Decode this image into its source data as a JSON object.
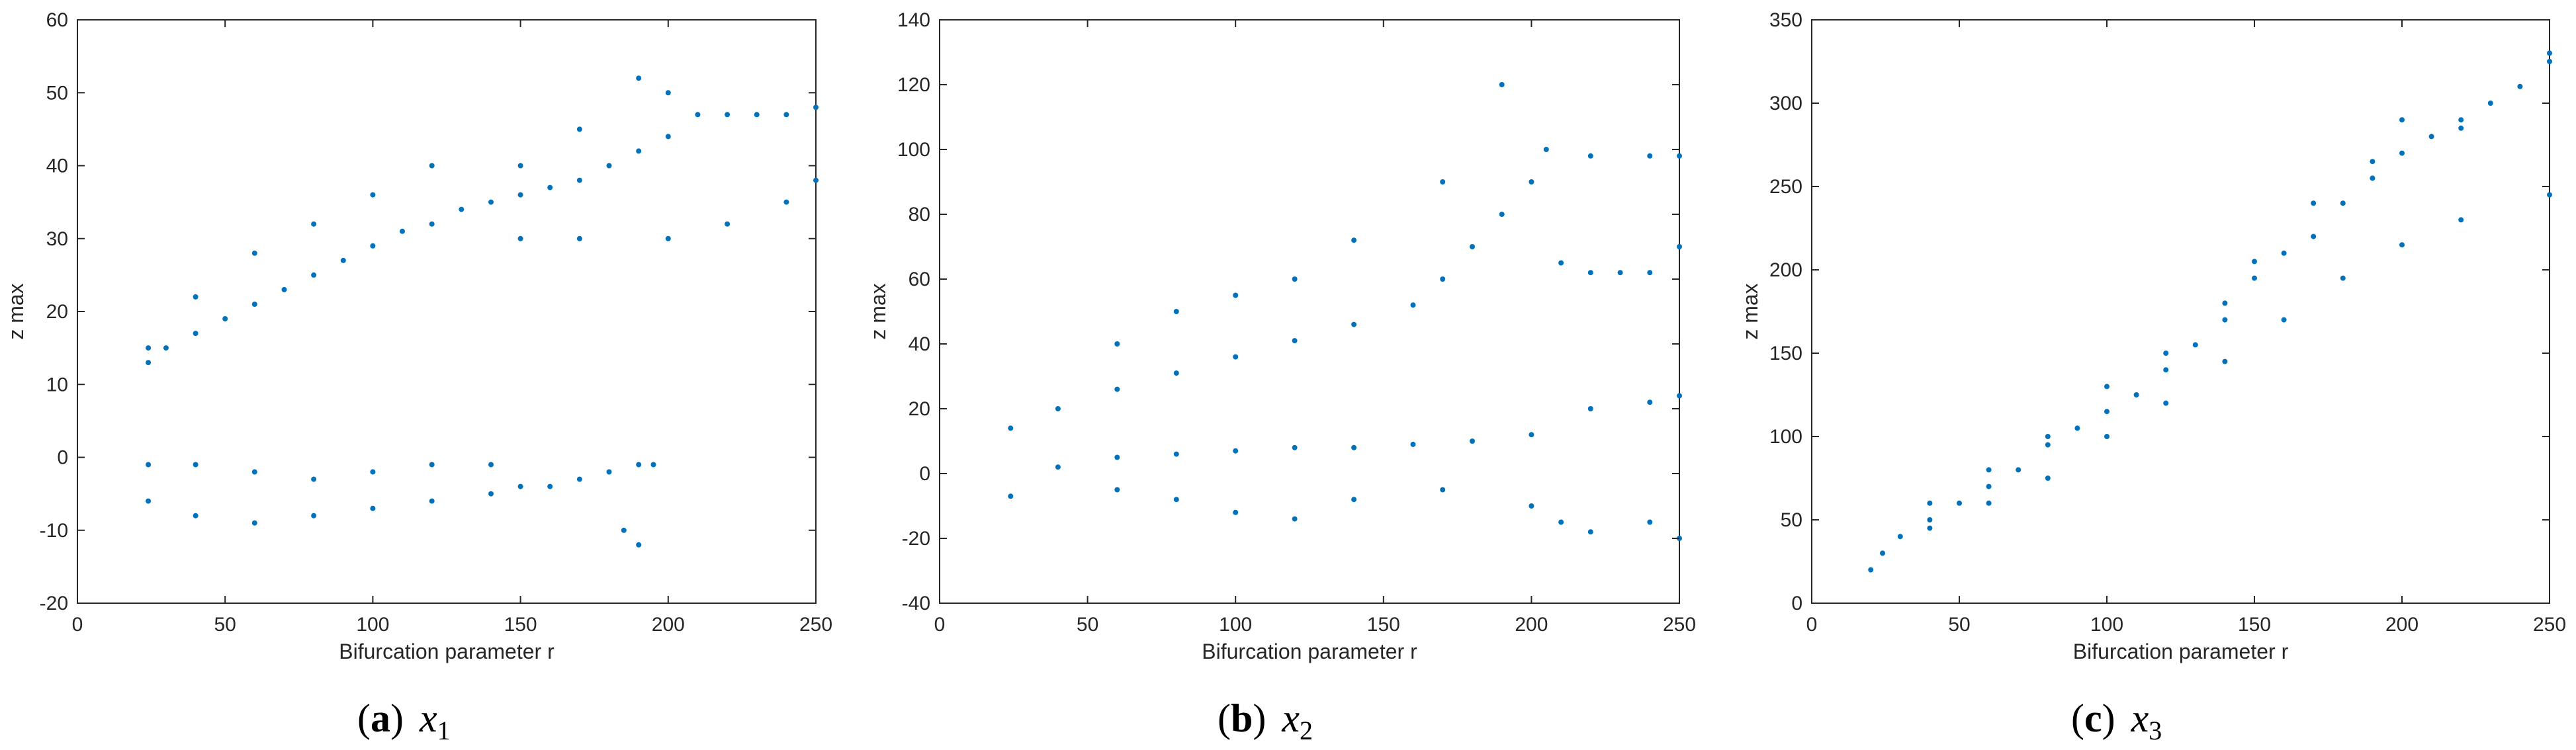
{
  "figure": {
    "marker_color": "#0072BD",
    "axis_color": "#262626"
  },
  "chart_data": [
    {
      "type": "scatter",
      "title": "",
      "xlabel": "Bifurcation parameter r",
      "ylabel": "z max",
      "xlim": [
        0,
        250
      ],
      "ylim": [
        -20,
        60
      ],
      "xticks": [
        0,
        50,
        100,
        150,
        200,
        250
      ],
      "yticks": [
        -20,
        -10,
        0,
        10,
        20,
        30,
        40,
        50,
        60
      ],
      "grid": false,
      "caption": {
        "open": "(",
        "letter": "a",
        "close": ")",
        "var": "x",
        "sub": "1"
      },
      "series": [
        {
          "values": [
            [
              24,
              13
            ],
            [
              30,
              15
            ],
            [
              40,
              17
            ],
            [
              50,
              19
            ],
            [
              60,
              21
            ],
            [
              70,
              23
            ],
            [
              80,
              25
            ],
            [
              90,
              27
            ],
            [
              100,
              29
            ],
            [
              110,
              31
            ],
            [
              120,
              32
            ],
            [
              130,
              34
            ],
            [
              140,
              35
            ],
            [
              150,
              36
            ],
            [
              160,
              37
            ],
            [
              170,
              38
            ],
            [
              180,
              40
            ],
            [
              190,
              42
            ],
            [
              200,
              44
            ],
            [
              210,
              47
            ],
            [
              220,
              47
            ],
            [
              230,
              47
            ],
            [
              240,
              47
            ],
            [
              250,
              48
            ],
            [
              24,
              15
            ],
            [
              40,
              22
            ],
            [
              60,
              28
            ],
            [
              80,
              32
            ],
            [
              100,
              36
            ],
            [
              120,
              40
            ],
            [
              150,
              40
            ],
            [
              170,
              45
            ],
            [
              190,
              52
            ],
            [
              200,
              50
            ],
            [
              150,
              30
            ],
            [
              170,
              30
            ],
            [
              200,
              30
            ],
            [
              220,
              32
            ],
            [
              240,
              35
            ],
            [
              250,
              38
            ],
            [
              24,
              -6
            ],
            [
              24,
              -1
            ],
            [
              40,
              -8
            ],
            [
              60,
              -9
            ],
            [
              80,
              -8
            ],
            [
              100,
              -7
            ],
            [
              120,
              -6
            ],
            [
              140,
              -5
            ],
            [
              150,
              -4
            ],
            [
              160,
              -4
            ],
            [
              170,
              -3
            ],
            [
              180,
              -2
            ],
            [
              190,
              -1
            ],
            [
              195,
              -1
            ],
            [
              40,
              -1
            ],
            [
              60,
              -2
            ],
            [
              80,
              -3
            ],
            [
              100,
              -2
            ],
            [
              120,
              -1
            ],
            [
              140,
              -1
            ],
            [
              190,
              -12
            ],
            [
              185,
              -10
            ]
          ]
        }
      ]
    },
    {
      "type": "scatter",
      "title": "",
      "xlabel": "Bifurcation parameter r",
      "ylabel": "z max",
      "xlim": [
        0,
        250
      ],
      "ylim": [
        -40,
        140
      ],
      "xticks": [
        0,
        50,
        100,
        150,
        200,
        250
      ],
      "yticks": [
        -40,
        -20,
        0,
        20,
        40,
        60,
        80,
        100,
        120,
        140
      ],
      "grid": false,
      "caption": {
        "open": "(",
        "letter": "b",
        "close": ")",
        "var": "x",
        "sub": "2"
      },
      "series": [
        {
          "values": [
            [
              24,
              14
            ],
            [
              40,
              20
            ],
            [
              60,
              26
            ],
            [
              80,
              31
            ],
            [
              100,
              36
            ],
            [
              120,
              41
            ],
            [
              140,
              46
            ],
            [
              160,
              52
            ],
            [
              170,
              60
            ],
            [
              180,
              70
            ],
            [
              190,
              80
            ],
            [
              200,
              90
            ],
            [
              210,
              65
            ],
            [
              220,
              62
            ],
            [
              230,
              62
            ],
            [
              240,
              62
            ],
            [
              250,
              70
            ],
            [
              60,
              40
            ],
            [
              80,
              50
            ],
            [
              100,
              55
            ],
            [
              120,
              60
            ],
            [
              140,
              72
            ],
            [
              170,
              90
            ],
            [
              190,
              120
            ],
            [
              205,
              100
            ],
            [
              220,
              98
            ],
            [
              240,
              98
            ],
            [
              250,
              98
            ],
            [
              24,
              -7
            ],
            [
              40,
              2
            ],
            [
              60,
              5
            ],
            [
              80,
              6
            ],
            [
              100,
              7
            ],
            [
              120,
              8
            ],
            [
              140,
              8
            ],
            [
              160,
              9
            ],
            [
              180,
              10
            ],
            [
              200,
              12
            ],
            [
              220,
              20
            ],
            [
              240,
              22
            ],
            [
              250,
              24
            ],
            [
              60,
              -5
            ],
            [
              80,
              -8
            ],
            [
              100,
              -12
            ],
            [
              120,
              -14
            ],
            [
              140,
              -8
            ],
            [
              170,
              -5
            ],
            [
              200,
              -10
            ],
            [
              210,
              -15
            ],
            [
              220,
              -18
            ],
            [
              240,
              -15
            ],
            [
              250,
              -20
            ]
          ]
        }
      ]
    },
    {
      "type": "scatter",
      "title": "",
      "xlabel": "Bifurcation parameter r",
      "ylabel": "z max",
      "xlim": [
        0,
        250
      ],
      "ylim": [
        0,
        350
      ],
      "xticks": [
        0,
        50,
        100,
        150,
        200,
        250
      ],
      "yticks": [
        0,
        50,
        100,
        150,
        200,
        250,
        300,
        350
      ],
      "grid": false,
      "caption": {
        "open": "(",
        "letter": "c",
        "close": ")",
        "var": "x",
        "sub": "3"
      },
      "series": [
        {
          "values": [
            [
              20,
              20
            ],
            [
              24,
              30
            ],
            [
              30,
              40
            ],
            [
              40,
              50
            ],
            [
              50,
              60
            ],
            [
              60,
              70
            ],
            [
              70,
              80
            ],
            [
              80,
              95
            ],
            [
              90,
              105
            ],
            [
              100,
              115
            ],
            [
              110,
              125
            ],
            [
              120,
              140
            ],
            [
              130,
              155
            ],
            [
              140,
              170
            ],
            [
              150,
              195
            ],
            [
              160,
              210
            ],
            [
              170,
              220
            ],
            [
              180,
              240
            ],
            [
              190,
              255
            ],
            [
              200,
              270
            ],
            [
              210,
              280
            ],
            [
              220,
              290
            ],
            [
              230,
              300
            ],
            [
              240,
              310
            ],
            [
              250,
              325
            ],
            [
              40,
              60
            ],
            [
              60,
              80
            ],
            [
              80,
              100
            ],
            [
              100,
              130
            ],
            [
              120,
              150
            ],
            [
              140,
              180
            ],
            [
              150,
              205
            ],
            [
              170,
              240
            ],
            [
              190,
              265
            ],
            [
              200,
              290
            ],
            [
              220,
              285
            ],
            [
              250,
              330
            ],
            [
              40,
              45
            ],
            [
              60,
              60
            ],
            [
              80,
              75
            ],
            [
              100,
              100
            ],
            [
              120,
              120
            ],
            [
              140,
              145
            ],
            [
              160,
              170
            ],
            [
              180,
              195
            ],
            [
              200,
              215
            ],
            [
              220,
              230
            ],
            [
              250,
              245
            ]
          ]
        }
      ]
    }
  ]
}
